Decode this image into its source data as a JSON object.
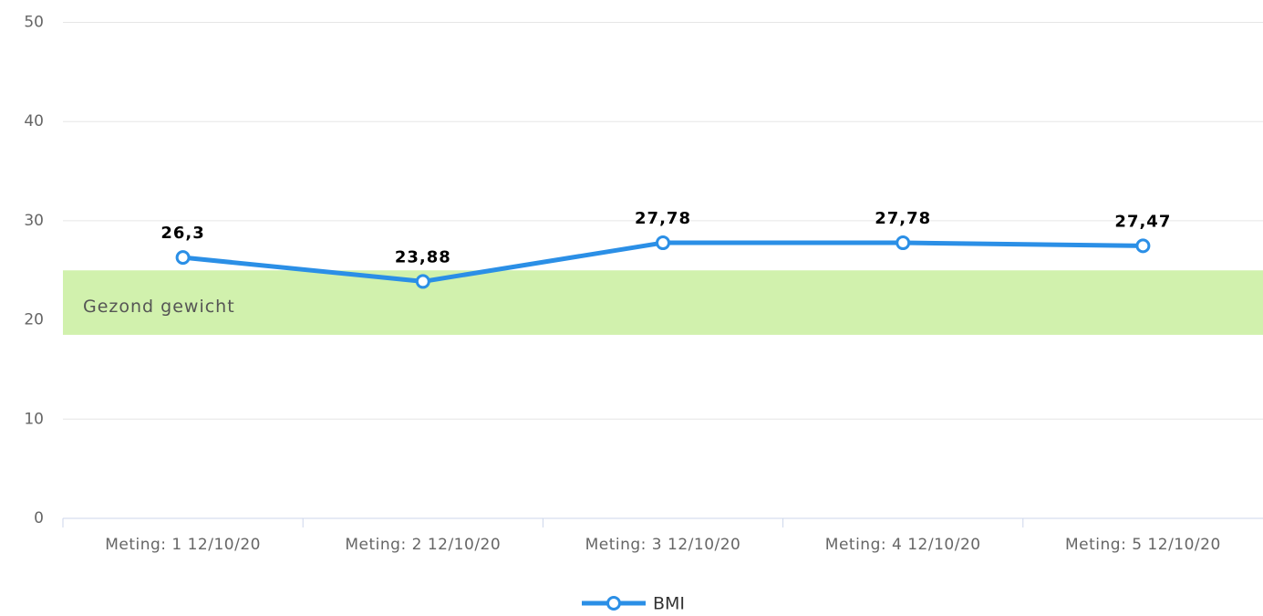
{
  "chart_data": {
    "type": "line",
    "categories": [
      "Meting: 1 12/10/20",
      "Meting: 2 12/10/20",
      "Meting: 3 12/10/20",
      "Meting: 4 12/10/20",
      "Meting: 5 12/10/20"
    ],
    "series": [
      {
        "name": "BMI",
        "color": "#2b8fe6",
        "values": [
          26.3,
          23.88,
          27.78,
          27.78,
          27.47
        ],
        "value_labels": [
          "26,3",
          "23,88",
          "27,78",
          "27,78",
          "27,47"
        ]
      }
    ],
    "ylim": [
      0,
      50
    ],
    "yticks": [
      0,
      10,
      20,
      30,
      40,
      50
    ],
    "grid": true,
    "plot_bands": [
      {
        "from": 18.5,
        "to": 25,
        "label": "Gezond gewicht",
        "color": "#d1f1ad"
      }
    ],
    "legend": "bottom"
  }
}
